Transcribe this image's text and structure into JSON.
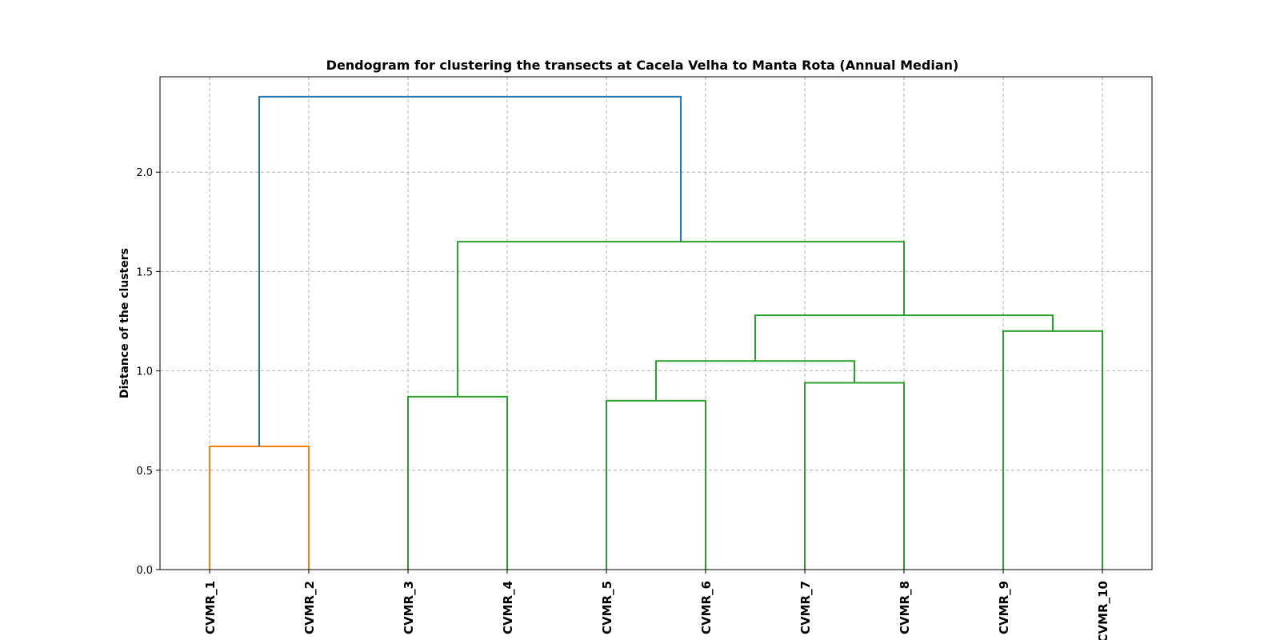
{
  "chart_data": {
    "type": "dendrogram",
    "title": "Dendogram for clustering the transects at Cacela Velha to Manta Rota (Annual Median)",
    "xlabel": "",
    "ylabel": "Distance of the clusters",
    "ylim": [
      0,
      2.48
    ],
    "yticks": [
      0.0,
      0.5,
      1.0,
      1.5,
      2.0
    ],
    "ytick_labels": [
      "0.0",
      "0.5",
      "1.0",
      "1.5",
      "2.0"
    ],
    "grid": true,
    "leaves": [
      "CVMR_1",
      "CVMR_2",
      "CVMR_3",
      "CVMR_4",
      "CVMR_5",
      "CVMR_6",
      "CVMR_7",
      "CVMR_8",
      "CVMR_9",
      "CVMR_10"
    ],
    "colors": {
      "cluster1": "#ff7f0e",
      "cluster2": "#2ca02c",
      "above_threshold": "#1f77b4"
    },
    "merges": [
      {
        "id": "m1",
        "children": [
          "CVMR_1",
          "CVMR_2"
        ],
        "height": 0.62,
        "color": "cluster1"
      },
      {
        "id": "m2",
        "children": [
          "CVMR_3",
          "CVMR_4"
        ],
        "height": 0.87,
        "color": "cluster2"
      },
      {
        "id": "m3",
        "children": [
          "CVMR_5",
          "CVMR_6"
        ],
        "height": 0.85,
        "color": "cluster2"
      },
      {
        "id": "m4",
        "children": [
          "CVMR_7",
          "CVMR_8"
        ],
        "height": 0.94,
        "color": "cluster2"
      },
      {
        "id": "m5",
        "children": [
          "CVMR_9",
          "CVMR_10"
        ],
        "height": 1.2,
        "color": "cluster2"
      },
      {
        "id": "m6",
        "children": [
          "m3",
          "m4"
        ],
        "height": 1.05,
        "color": "cluster2"
      },
      {
        "id": "m7",
        "children": [
          "m6",
          "m5"
        ],
        "height": 1.28,
        "color": "cluster2"
      },
      {
        "id": "m8",
        "children": [
          "m2",
          "m7"
        ],
        "height": 1.65,
        "color": "cluster2"
      },
      {
        "id": "m9",
        "children": [
          "m1",
          "m8"
        ],
        "height": 2.38,
        "color": "above_threshold"
      }
    ]
  }
}
